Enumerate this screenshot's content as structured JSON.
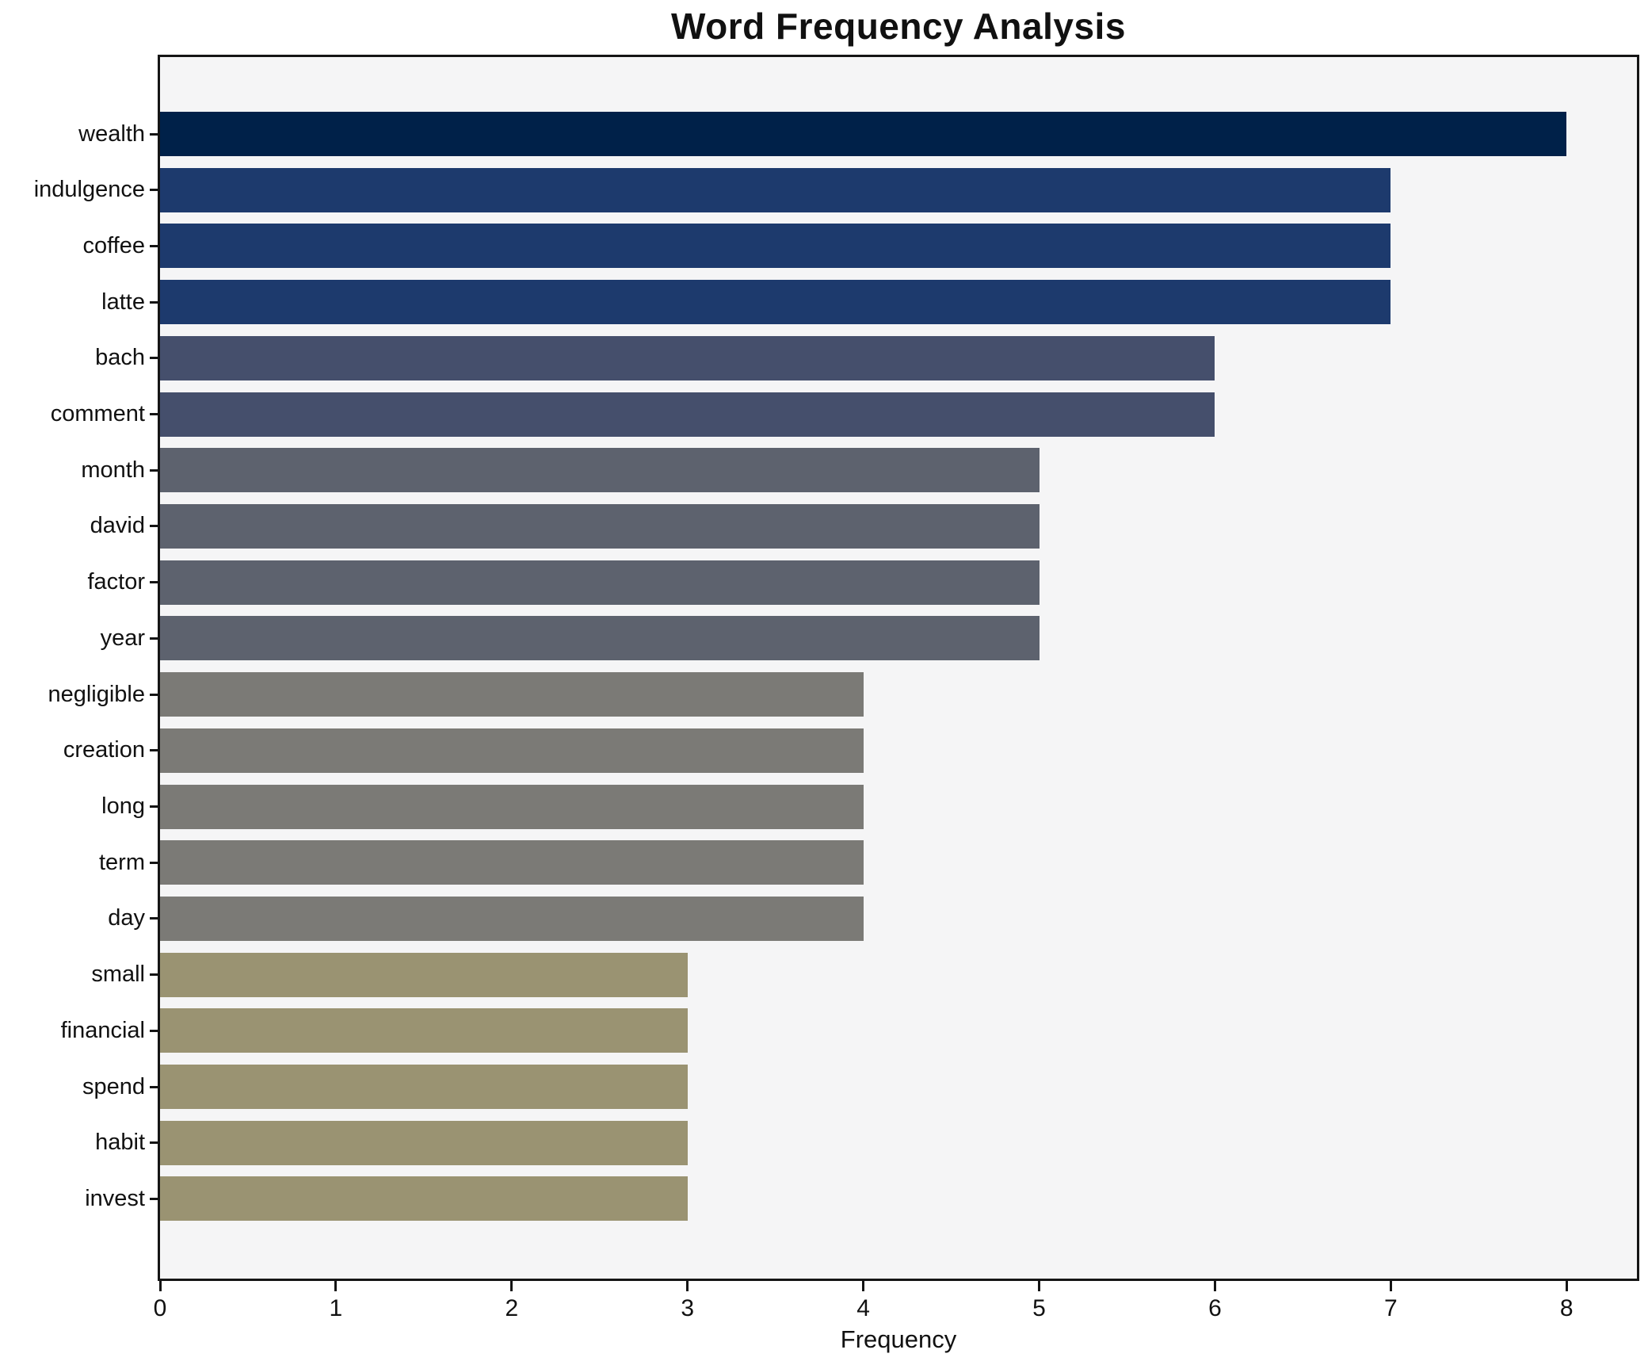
{
  "chart_data": {
    "type": "bar",
    "orientation": "horizontal",
    "title": "Word Frequency Analysis",
    "xlabel": "Frequency",
    "ylabel": "",
    "categories": [
      "wealth",
      "indulgence",
      "coffee",
      "latte",
      "bach",
      "comment",
      "month",
      "david",
      "factor",
      "year",
      "negligible",
      "creation",
      "long",
      "term",
      "day",
      "small",
      "financial",
      "spend",
      "habit",
      "invest"
    ],
    "values": [
      8,
      7,
      7,
      7,
      6,
      6,
      5,
      5,
      5,
      5,
      4,
      4,
      4,
      4,
      4,
      3,
      3,
      3,
      3,
      3
    ],
    "bar_colors": [
      "#002149",
      "#1d3a6d",
      "#1d3a6d",
      "#1d3a6d",
      "#454f6c",
      "#454f6c",
      "#5d626e",
      "#5d626e",
      "#5d626e",
      "#5d626e",
      "#7b7a76",
      "#7b7a76",
      "#7b7a76",
      "#7b7a76",
      "#7b7a76",
      "#9a9372",
      "#9a9372",
      "#9a9372",
      "#9a9372",
      "#9a9372"
    ],
    "xlim": [
      0,
      8.4
    ],
    "xticks": [
      0,
      1,
      2,
      3,
      4,
      5,
      6,
      7,
      8
    ],
    "xtick_labels": [
      "0",
      "1",
      "2",
      "3",
      "4",
      "5",
      "6",
      "7",
      "8"
    ],
    "grid": false,
    "legend": false,
    "colors": {
      "plot_bg": "#f5f5f6",
      "figure_bg": "#ffffff",
      "spine": "#151515",
      "text": "#111111"
    }
  }
}
